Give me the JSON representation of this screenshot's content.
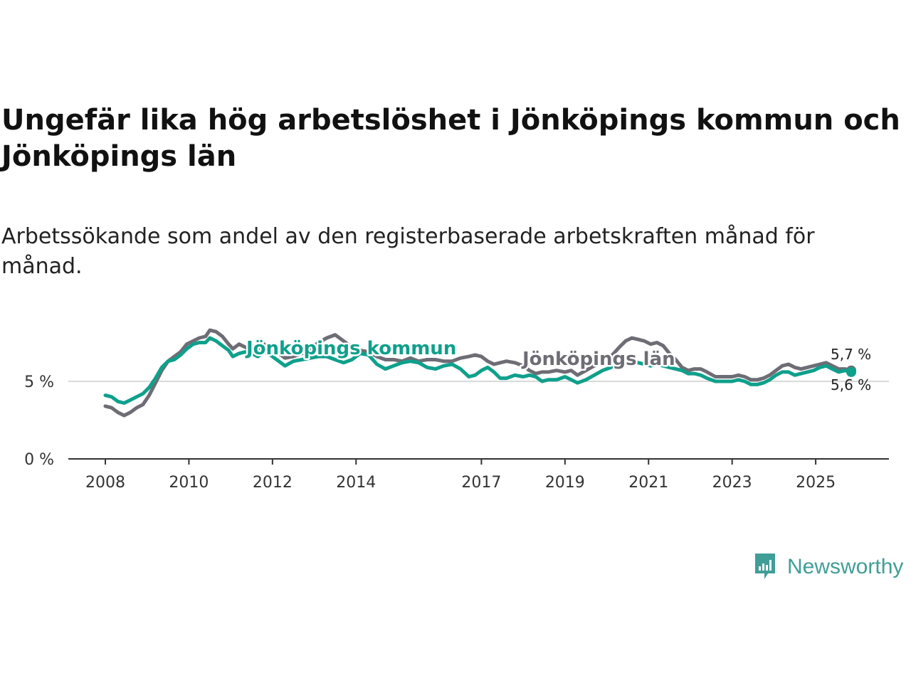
{
  "title": "Ungefär lika hög arbetslöshet i Jönköpings kommun och Jönköpings län",
  "subtitle": "Arbetssökande som andel av den registerbaserade arbetskraften månad för månad.",
  "brand": {
    "name": "Newsworthy",
    "color": "#3f9e97",
    "icon": "newsworthy-logo-icon"
  },
  "chart_data": {
    "type": "line",
    "title": "Ungefär lika hög arbetslöshet i Jönköpings kommun och Jönköpings län",
    "xlabel": "",
    "ylabel": "",
    "xlim": [
      2008.0,
      2025.85
    ],
    "ylim": [
      0,
      10
    ],
    "y_ticks": [
      0,
      5
    ],
    "y_tick_labels": [
      "0 %",
      "5 %"
    ],
    "x_ticks": [
      2008,
      2010,
      2012,
      2014,
      2017,
      2019,
      2021,
      2023,
      2025
    ],
    "x_tick_labels": [
      "2008",
      "2010",
      "2012",
      "2014",
      "2017",
      "2019",
      "2021",
      "2023",
      "2025"
    ],
    "grid": true,
    "series": [
      {
        "name": "Jönköpings län",
        "color": "#6e6d75",
        "end_label": "5,7 %",
        "points": [
          [
            2008.0,
            3.4
          ],
          [
            2008.15,
            3.3
          ],
          [
            2008.3,
            3.0
          ],
          [
            2008.45,
            2.8
          ],
          [
            2008.6,
            3.0
          ],
          [
            2008.75,
            3.3
          ],
          [
            2008.9,
            3.5
          ],
          [
            2009.05,
            4.1
          ],
          [
            2009.2,
            4.9
          ],
          [
            2009.35,
            5.7
          ],
          [
            2009.5,
            6.3
          ],
          [
            2009.65,
            6.6
          ],
          [
            2009.8,
            6.9
          ],
          [
            2009.95,
            7.4
          ],
          [
            2010.1,
            7.6
          ],
          [
            2010.25,
            7.8
          ],
          [
            2010.4,
            7.9
          ],
          [
            2010.5,
            8.3
          ],
          [
            2010.65,
            8.2
          ],
          [
            2010.8,
            7.9
          ],
          [
            2010.95,
            7.4
          ],
          [
            2011.05,
            7.1
          ],
          [
            2011.2,
            7.4
          ],
          [
            2011.35,
            7.2
          ],
          [
            2011.5,
            7.0
          ],
          [
            2011.65,
            7.1
          ],
          [
            2011.8,
            7.4
          ],
          [
            2011.95,
            7.1
          ],
          [
            2012.1,
            6.9
          ],
          [
            2012.3,
            6.5
          ],
          [
            2012.5,
            6.6
          ],
          [
            2012.7,
            6.8
          ],
          [
            2012.9,
            7.1
          ],
          [
            2013.1,
            7.5
          ],
          [
            2013.3,
            7.8
          ],
          [
            2013.5,
            8.0
          ],
          [
            2013.7,
            7.6
          ],
          [
            2013.9,
            7.2
          ],
          [
            2014.1,
            7.0
          ],
          [
            2014.3,
            6.9
          ],
          [
            2014.5,
            6.6
          ],
          [
            2014.7,
            6.4
          ],
          [
            2014.9,
            6.4
          ],
          [
            2015.1,
            6.3
          ],
          [
            2015.3,
            6.5
          ],
          [
            2015.5,
            6.3
          ],
          [
            2015.7,
            6.4
          ],
          [
            2015.9,
            6.4
          ],
          [
            2016.1,
            6.3
          ],
          [
            2016.3,
            6.3
          ],
          [
            2016.5,
            6.5
          ],
          [
            2016.7,
            6.6
          ],
          [
            2016.85,
            6.7
          ],
          [
            2017.0,
            6.6
          ],
          [
            2017.15,
            6.3
          ],
          [
            2017.3,
            6.1
          ],
          [
            2017.45,
            6.2
          ],
          [
            2017.6,
            6.3
          ],
          [
            2017.8,
            6.2
          ],
          [
            2018.0,
            6.0
          ],
          [
            2018.15,
            5.7
          ],
          [
            2018.3,
            5.5
          ],
          [
            2018.45,
            5.6
          ],
          [
            2018.6,
            5.6
          ],
          [
            2018.8,
            5.7
          ],
          [
            2019.0,
            5.6
          ],
          [
            2019.15,
            5.7
          ],
          [
            2019.3,
            5.4
          ],
          [
            2019.5,
            5.7
          ],
          [
            2019.7,
            6.0
          ],
          [
            2019.9,
            6.3
          ],
          [
            2020.1,
            6.6
          ],
          [
            2020.3,
            7.2
          ],
          [
            2020.45,
            7.6
          ],
          [
            2020.6,
            7.8
          ],
          [
            2020.75,
            7.7
          ],
          [
            2020.9,
            7.6
          ],
          [
            2021.05,
            7.4
          ],
          [
            2021.2,
            7.5
          ],
          [
            2021.35,
            7.3
          ],
          [
            2021.5,
            6.8
          ],
          [
            2021.65,
            6.4
          ],
          [
            2021.8,
            5.9
          ],
          [
            2021.95,
            5.7
          ],
          [
            2022.1,
            5.8
          ],
          [
            2022.25,
            5.8
          ],
          [
            2022.4,
            5.6
          ],
          [
            2022.6,
            5.3
          ],
          [
            2022.8,
            5.3
          ],
          [
            2023.0,
            5.3
          ],
          [
            2023.15,
            5.4
          ],
          [
            2023.3,
            5.3
          ],
          [
            2023.45,
            5.1
          ],
          [
            2023.6,
            5.1
          ],
          [
            2023.75,
            5.2
          ],
          [
            2023.9,
            5.4
          ],
          [
            2024.05,
            5.7
          ],
          [
            2024.2,
            6.0
          ],
          [
            2024.35,
            6.1
          ],
          [
            2024.5,
            5.9
          ],
          [
            2024.65,
            5.8
          ],
          [
            2024.8,
            5.9
          ],
          [
            2024.95,
            6.0
          ],
          [
            2025.1,
            6.1
          ],
          [
            2025.25,
            6.2
          ],
          [
            2025.4,
            6.0
          ],
          [
            2025.55,
            5.8
          ],
          [
            2025.7,
            5.8
          ],
          [
            2025.85,
            5.7
          ]
        ]
      },
      {
        "name": "Jönköpings kommun",
        "color": "#0fa08c",
        "end_label": "5,6 %",
        "points": [
          [
            2008.0,
            4.1
          ],
          [
            2008.15,
            4.0
          ],
          [
            2008.3,
            3.7
          ],
          [
            2008.45,
            3.6
          ],
          [
            2008.6,
            3.8
          ],
          [
            2008.75,
            4.0
          ],
          [
            2008.9,
            4.2
          ],
          [
            2009.05,
            4.6
          ],
          [
            2009.2,
            5.2
          ],
          [
            2009.35,
            5.9
          ],
          [
            2009.5,
            6.3
          ],
          [
            2009.65,
            6.4
          ],
          [
            2009.8,
            6.7
          ],
          [
            2009.95,
            7.1
          ],
          [
            2010.1,
            7.4
          ],
          [
            2010.25,
            7.5
          ],
          [
            2010.4,
            7.5
          ],
          [
            2010.5,
            7.8
          ],
          [
            2010.65,
            7.6
          ],
          [
            2010.8,
            7.3
          ],
          [
            2010.95,
            7.0
          ],
          [
            2011.05,
            6.6
          ],
          [
            2011.2,
            6.8
          ],
          [
            2011.35,
            6.9
          ],
          [
            2011.5,
            6.8
          ],
          [
            2011.65,
            6.6
          ],
          [
            2011.8,
            6.9
          ],
          [
            2011.95,
            6.7
          ],
          [
            2012.1,
            6.4
          ],
          [
            2012.3,
            6.0
          ],
          [
            2012.5,
            6.3
          ],
          [
            2012.7,
            6.4
          ],
          [
            2012.9,
            6.5
          ],
          [
            2013.1,
            6.6
          ],
          [
            2013.3,
            6.6
          ],
          [
            2013.5,
            6.4
          ],
          [
            2013.7,
            6.2
          ],
          [
            2013.9,
            6.4
          ],
          [
            2014.1,
            6.8
          ],
          [
            2014.3,
            6.7
          ],
          [
            2014.5,
            6.1
          ],
          [
            2014.7,
            5.8
          ],
          [
            2014.9,
            6.0
          ],
          [
            2015.1,
            6.2
          ],
          [
            2015.3,
            6.3
          ],
          [
            2015.5,
            6.2
          ],
          [
            2015.7,
            5.9
          ],
          [
            2015.9,
            5.8
          ],
          [
            2016.1,
            6.0
          ],
          [
            2016.3,
            6.1
          ],
          [
            2016.5,
            5.8
          ],
          [
            2016.7,
            5.3
          ],
          [
            2016.85,
            5.4
          ],
          [
            2017.0,
            5.7
          ],
          [
            2017.15,
            5.9
          ],
          [
            2017.3,
            5.6
          ],
          [
            2017.45,
            5.2
          ],
          [
            2017.6,
            5.2
          ],
          [
            2017.8,
            5.4
          ],
          [
            2018.0,
            5.3
          ],
          [
            2018.15,
            5.4
          ],
          [
            2018.3,
            5.3
          ],
          [
            2018.45,
            5.0
          ],
          [
            2018.6,
            5.1
          ],
          [
            2018.8,
            5.1
          ],
          [
            2019.0,
            5.3
          ],
          [
            2019.15,
            5.1
          ],
          [
            2019.3,
            4.9
          ],
          [
            2019.5,
            5.1
          ],
          [
            2019.7,
            5.4
          ],
          [
            2019.9,
            5.7
          ],
          [
            2020.1,
            5.9
          ],
          [
            2020.3,
            6.1
          ],
          [
            2020.45,
            6.2
          ],
          [
            2020.6,
            6.3
          ],
          [
            2020.75,
            6.2
          ],
          [
            2020.9,
            6.1
          ],
          [
            2021.05,
            6.0
          ],
          [
            2021.2,
            6.1
          ],
          [
            2021.35,
            6.0
          ],
          [
            2021.5,
            5.9
          ],
          [
            2021.65,
            5.8
          ],
          [
            2021.8,
            5.7
          ],
          [
            2021.95,
            5.5
          ],
          [
            2022.1,
            5.5
          ],
          [
            2022.25,
            5.4
          ],
          [
            2022.4,
            5.2
          ],
          [
            2022.6,
            5.0
          ],
          [
            2022.8,
            5.0
          ],
          [
            2023.0,
            5.0
          ],
          [
            2023.15,
            5.1
          ],
          [
            2023.3,
            5.0
          ],
          [
            2023.45,
            4.8
          ],
          [
            2023.6,
            4.8
          ],
          [
            2023.75,
            4.9
          ],
          [
            2023.9,
            5.1
          ],
          [
            2024.05,
            5.4
          ],
          [
            2024.2,
            5.6
          ],
          [
            2024.35,
            5.6
          ],
          [
            2024.5,
            5.4
          ],
          [
            2024.65,
            5.5
          ],
          [
            2024.8,
            5.6
          ],
          [
            2024.95,
            5.7
          ],
          [
            2025.1,
            5.9
          ],
          [
            2025.25,
            6.0
          ],
          [
            2025.4,
            5.8
          ],
          [
            2025.55,
            5.6
          ],
          [
            2025.7,
            5.7
          ],
          [
            2025.85,
            5.6
          ]
        ]
      }
    ]
  }
}
